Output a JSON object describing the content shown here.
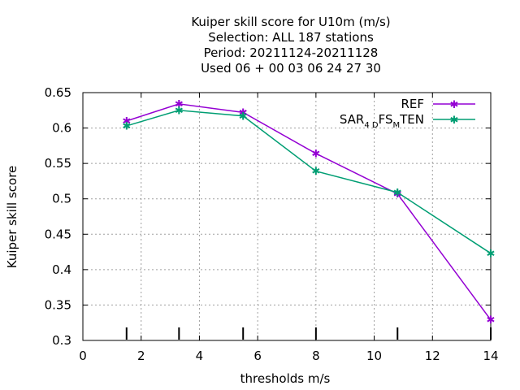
{
  "chart_data": {
    "type": "line",
    "title_lines": [
      "Kuiper skill score  for U10m (m/s)",
      "Selection: ALL    187 stations",
      "Period: 20211124-20211128",
      "Used  06 + 00 03 06 24 27 30"
    ],
    "xlabel": "thresholds m/s",
    "ylabel": "Kuiper skill score",
    "xlim": [
      0,
      14
    ],
    "ylim": [
      0.3,
      0.65
    ],
    "xticks": [
      "0",
      "2",
      "4",
      "6",
      "8",
      "10",
      "12",
      "14"
    ],
    "yticks": [
      "0.3",
      "0.35",
      "0.4",
      "0.45",
      "0.5",
      "0.55",
      "0.6",
      "0.65"
    ],
    "grid": true,
    "legend_position": "top-right",
    "threshold_markers_x": [
      1.5,
      3.3,
      5.5,
      8,
      10.8,
      14
    ],
    "series": [
      {
        "name": "REF",
        "color": "#9400d3",
        "x": [
          1.5,
          3.3,
          5.5,
          8,
          10.8,
          14
        ],
        "y": [
          0.61,
          0.634,
          0.622,
          0.564,
          0.507,
          0.329
        ]
      },
      {
        "name_parts": {
          "base": "SAR",
          "sub1": "4 D",
          "mid": "FS",
          "sub2": "M",
          "end": "TEN"
        },
        "color": "#009e73",
        "x": [
          1.5,
          3.3,
          5.5,
          8,
          10.8,
          14
        ],
        "y": [
          0.603,
          0.625,
          0.617,
          0.539,
          0.509,
          0.423
        ]
      }
    ]
  }
}
